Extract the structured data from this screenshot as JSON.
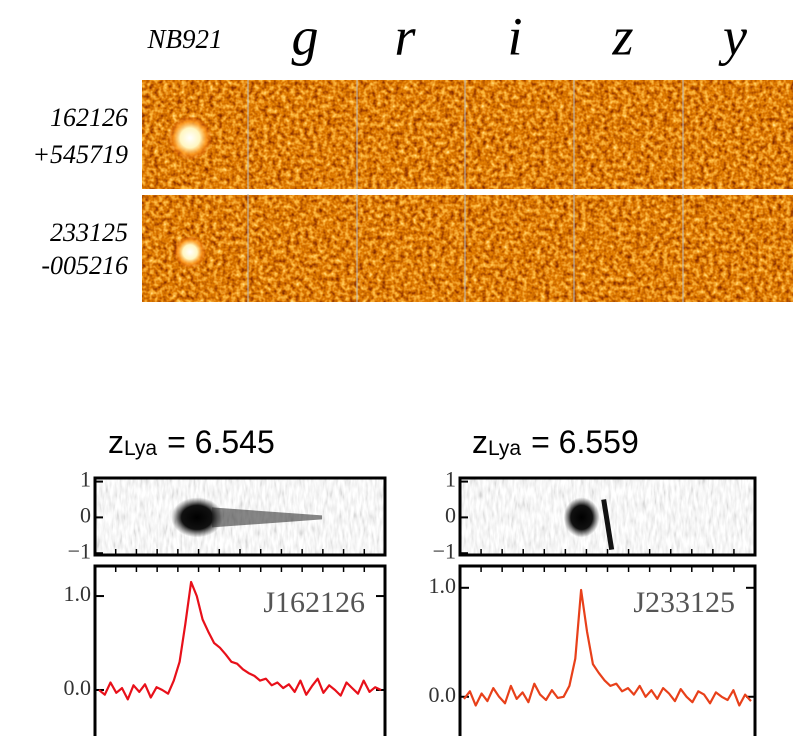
{
  "header": {
    "bands": [
      "NB921",
      "g",
      "r",
      "i",
      "z",
      "y"
    ]
  },
  "objects": [
    {
      "id": "162126",
      "coord": "+545719"
    },
    {
      "id": "233125",
      "coord": "-005216"
    }
  ],
  "chart_data": [
    {
      "type": "line",
      "title": [
        "z",
        "Lya",
        "= 6.545"
      ],
      "annotation": "J162126",
      "color": "#e8101a",
      "values": [
        0.0,
        -0.05,
        0.08,
        -0.03,
        0.02,
        -0.1,
        0.05,
        -0.02,
        0.06,
        -0.08,
        0.03,
        0.0,
        -0.04,
        0.1,
        0.3,
        0.7,
        1.15,
        1.0,
        0.75,
        0.62,
        0.5,
        0.45,
        0.38,
        0.3,
        0.28,
        0.22,
        0.18,
        0.15,
        0.1,
        0.12,
        0.05,
        0.08,
        0.02,
        0.06,
        -0.02,
        0.1,
        -0.05,
        0.04,
        0.12,
        -0.03,
        0.05,
        0.0,
        -0.06,
        0.08,
        0.02,
        -0.04,
        0.1,
        -0.02,
        0.03,
        0.0
      ],
      "ylim": [
        -0.49,
        1.32
      ],
      "yticks": [
        {
          "value": 0,
          "label": "0.0"
        },
        {
          "value": 1,
          "label": "1.0"
        }
      ],
      "inset": {
        "ylim": [
          -1.05,
          1.1
        ],
        "yticks": [
          1,
          0,
          {
            "value": -1,
            "label": "−1"
          }
        ]
      }
    },
    {
      "type": "line",
      "title": [
        "z",
        "Lya",
        "= 6.559"
      ],
      "annotation": "J233125",
      "color": "#e8401a",
      "values": [
        -0.02,
        0.05,
        -0.08,
        0.03,
        -0.04,
        0.08,
        0.0,
        -0.06,
        0.1,
        -0.02,
        0.04,
        -0.05,
        0.12,
        0.02,
        -0.03,
        0.06,
        -0.01,
        0.0,
        0.1,
        0.35,
        0.98,
        0.6,
        0.3,
        0.22,
        0.15,
        0.1,
        0.12,
        0.05,
        0.08,
        0.02,
        0.1,
        0.0,
        0.06,
        -0.02,
        0.08,
        0.03,
        -0.04,
        0.07,
        0.0,
        -0.05,
        0.05,
        0.02,
        -0.06,
        0.04,
        0.0,
        -0.03,
        0.06,
        -0.08,
        0.02,
        -0.04
      ],
      "ylim": [
        -0.36,
        1.2
      ],
      "yticks": [
        {
          "value": 0,
          "label": "0.0"
        },
        {
          "value": 1,
          "label": "1.0"
        }
      ],
      "inset": {
        "ylim": [
          -1.05,
          1.1
        ],
        "yticks": [
          1,
          0,
          {
            "value": -1,
            "label": "−1"
          }
        ]
      }
    }
  ]
}
